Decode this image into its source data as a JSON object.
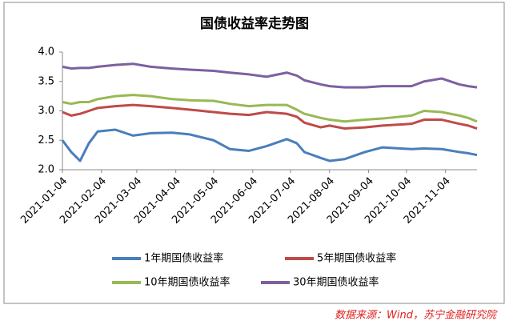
{
  "chart_data": {
    "type": "line",
    "title": "国债收益率走势图",
    "x": [
      "2021-01-04",
      "2021-01-11",
      "2021-01-18",
      "2021-01-25",
      "2021-02-01",
      "2021-02-15",
      "2021-03-01",
      "2021-03-15",
      "2021-04-01",
      "2021-04-15",
      "2021-05-04",
      "2021-05-17",
      "2021-06-01",
      "2021-06-15",
      "2021-07-01",
      "2021-07-09",
      "2021-07-15",
      "2021-07-28",
      "2021-08-04",
      "2021-08-16",
      "2021-09-01",
      "2021-09-15",
      "2021-10-08",
      "2021-10-18",
      "2021-11-01",
      "2021-11-15",
      "2021-11-22",
      "2021-11-29"
    ],
    "xlim": [
      "2021-01-04",
      "2021-11-29"
    ],
    "xticks": [
      "2021-01-04",
      "2021-02-04",
      "2021-03-04",
      "2021-04-04",
      "2021-05-04",
      "2021-06-04",
      "2021-07-04",
      "2021-08-04",
      "2021-09-04",
      "2021-10-04",
      "2021-11-04"
    ],
    "ylim": [
      2,
      4
    ],
    "yticks": [
      {
        "value": 2,
        "label": "2.0"
      },
      {
        "value": 2.5,
        "label": "2.5"
      },
      {
        "value": 3,
        "label": "3.0"
      },
      {
        "value": 3.5,
        "label": "3.5"
      },
      {
        "value": 4,
        "label": "4.0"
      }
    ],
    "series": [
      {
        "name": "1年期国债收益率",
        "color": "#4a7ebb",
        "values": [
          2.5,
          2.3,
          2.15,
          2.45,
          2.65,
          2.68,
          2.58,
          2.62,
          2.63,
          2.6,
          2.5,
          2.35,
          2.32,
          2.4,
          2.52,
          2.45,
          2.3,
          2.2,
          2.15,
          2.18,
          2.3,
          2.38,
          2.35,
          2.36,
          2.35,
          2.3,
          2.28,
          2.25
        ]
      },
      {
        "name": "5年期国债收益率",
        "color": "#be4b48",
        "values": [
          2.98,
          2.92,
          2.95,
          3.0,
          3.05,
          3.08,
          3.1,
          3.08,
          3.05,
          3.02,
          2.98,
          2.95,
          2.93,
          2.98,
          2.95,
          2.9,
          2.8,
          2.72,
          2.75,
          2.7,
          2.72,
          2.75,
          2.78,
          2.85,
          2.85,
          2.78,
          2.75,
          2.7
        ]
      },
      {
        "name": "10年期国债收益率",
        "color": "#98b954",
        "values": [
          3.15,
          3.12,
          3.15,
          3.15,
          3.2,
          3.25,
          3.27,
          3.25,
          3.2,
          3.18,
          3.17,
          3.12,
          3.08,
          3.1,
          3.1,
          3.02,
          2.95,
          2.88,
          2.85,
          2.82,
          2.85,
          2.87,
          2.92,
          3.0,
          2.98,
          2.92,
          2.88,
          2.82
        ]
      },
      {
        "name": "30年期国债收益率",
        "color": "#7d60a0",
        "values": [
          3.75,
          3.72,
          3.73,
          3.73,
          3.75,
          3.78,
          3.8,
          3.75,
          3.72,
          3.7,
          3.68,
          3.65,
          3.62,
          3.58,
          3.65,
          3.6,
          3.52,
          3.45,
          3.42,
          3.4,
          3.4,
          3.42,
          3.42,
          3.5,
          3.55,
          3.45,
          3.42,
          3.4
        ]
      }
    ],
    "source": "数据来源：Wind，苏宁金融研究院"
  }
}
